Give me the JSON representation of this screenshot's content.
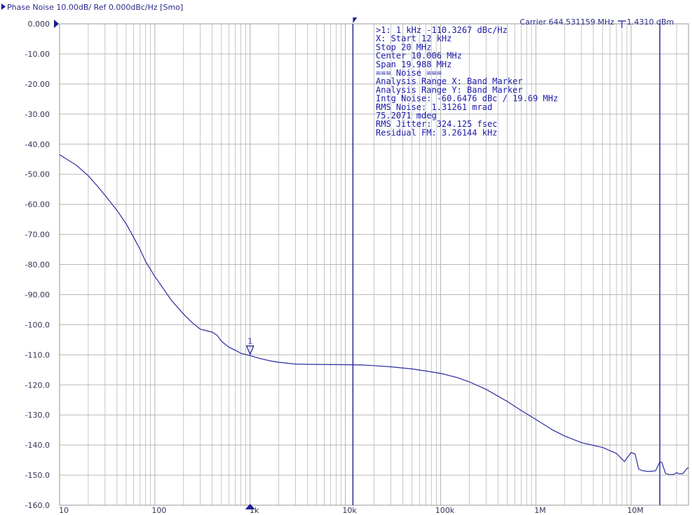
{
  "header": {
    "title": "Phase Noise 10.00dB/ Ref 0.000dBc/Hz [Smo]",
    "carrier": "Carrier 644.531159 MHz",
    "carrier_power": "1.4310 dBm"
  },
  "colors": {
    "trace": "#2a2aa0",
    "grid": "#b8b8b8",
    "marker_line": "#1c1c90",
    "text": "#1a1aa8",
    "background": "#ffffff"
  },
  "marker": {
    "label": "1",
    "x": 1000,
    "y": -110.3267
  },
  "band_markers": [
    12000,
    20000000
  ],
  "readout": [
    ">1:  1 kHz  -110.3267 dBc/Hz",
    " X: Start 12 kHz",
    "     Stop 20 MHz",
    "   Center 10.006 MHz",
    "     Span 19.988 MHz",
    "=== Noise ===",
    "Analysis Range X: Band Marker",
    "Analysis Range Y: Band Marker",
    "Intg Noise: -60.6476 dBc / 19.69 MHz",
    " RMS Noise: 1.31261 mrad",
    "            75.2071 mdeg",
    "RMS Jitter: 324.125 fsec",
    "Residual FM: 3.26144 kHz"
  ],
  "chart_data": {
    "type": "line",
    "x_scale": "log",
    "xlim": [
      10,
      40000000
    ],
    "ylim": [
      -160,
      0
    ],
    "grid": true,
    "title": "Phase Noise 10.00dB/ Ref 0.000dBc/Hz [Smo]",
    "xlabel": "",
    "ylabel": "",
    "x_ticks": [
      10,
      100,
      1000,
      10000,
      100000,
      1000000,
      10000000
    ],
    "x_tick_labels": [
      "10",
      "100",
      "1k",
      "10k",
      "100k",
      "1M",
      "10M"
    ],
    "y_ticks": [
      0,
      -10,
      -20,
      -30,
      -40,
      -50,
      -60,
      -70,
      -80,
      -90,
      -100,
      -110,
      -120,
      -130,
      -140,
      -150,
      -160
    ],
    "y_tick_labels": [
      "0.000",
      "-10.00",
      "-20.00",
      "-30.00",
      "-40.00",
      "-50.00",
      "-60.00",
      "-70.00",
      "-80.00",
      "-90.00",
      "-100.0",
      "-110.0",
      "-120.0",
      "-130.0",
      "-140.0",
      "-150.0",
      "-160.0"
    ],
    "series": [
      {
        "x": [
          10,
          15,
          20,
          25,
          30,
          40,
          50,
          60,
          70,
          80,
          100,
          150,
          200,
          250,
          300,
          350,
          400,
          450,
          500,
          600,
          700,
          800,
          1000,
          1300,
          1600,
          2000,
          3000,
          5000,
          10000,
          15000,
          20000,
          30000,
          50000,
          70000,
          100000,
          150000,
          200000,
          300000,
          500000,
          700000,
          1000000,
          1500000,
          2000000,
          3000000,
          5000000,
          7000000,
          8500000,
          10000000,
          11000000,
          12000000,
          13000000,
          15000000,
          18000000,
          20000000,
          21000000,
          23000000,
          25000000,
          28000000,
          30000000,
          32000000,
          35000000,
          38000000,
          40000000
        ],
        "y": [
          -43.5,
          -47,
          -50.5,
          -54,
          -57,
          -62,
          -66.5,
          -71,
          -75,
          -79,
          -84,
          -92,
          -96.5,
          -99.5,
          -101.5,
          -102,
          -102.5,
          -103.5,
          -105.5,
          -107.5,
          -108.5,
          -109.5,
          -110.3,
          -111.3,
          -112,
          -112.5,
          -113.1,
          -113.2,
          -113.3,
          -113.4,
          -113.6,
          -114,
          -114.7,
          -115.4,
          -116.2,
          -117.6,
          -119,
          -121.5,
          -125.5,
          -128.5,
          -131.5,
          -135,
          -137,
          -139.2,
          -140.8,
          -142.8,
          -145.5,
          -142.5,
          -143,
          -148,
          -148.5,
          -148.8,
          -148.6,
          -145.6,
          -145.8,
          -149.5,
          -149.8,
          -149.8,
          -149.2,
          -149.6,
          -149.5,
          -148,
          -147.4
        ]
      }
    ]
  }
}
